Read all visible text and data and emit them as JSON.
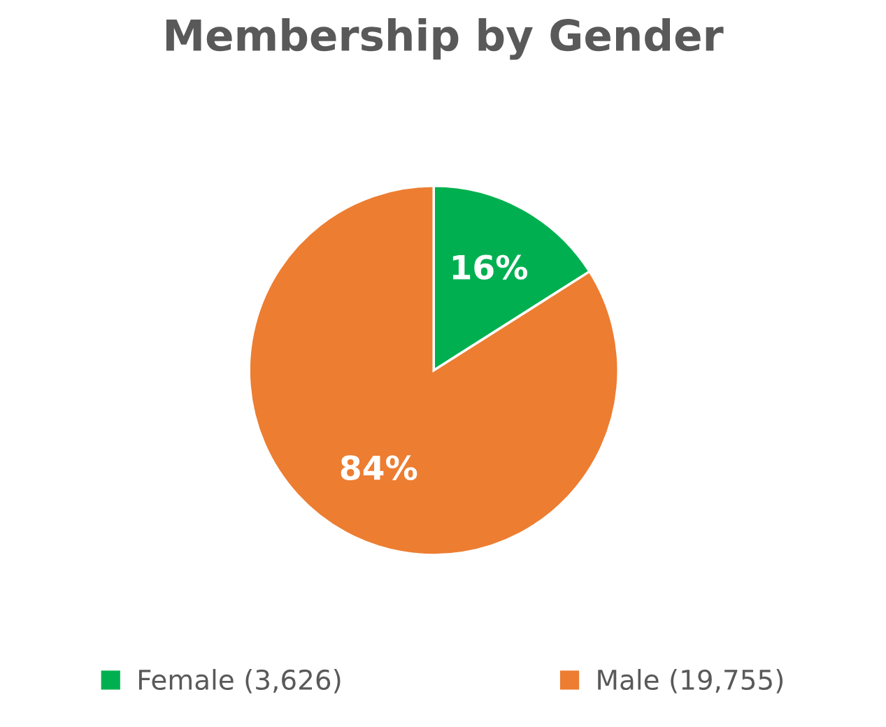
{
  "chart_data": {
    "type": "pie",
    "title": "Membership by Gender",
    "categories": [
      "Female (3,626)",
      "Male (19,755)"
    ],
    "values": [
      16,
      84
    ],
    "colors": [
      "#00b050",
      "#ed7d31"
    ],
    "value_labels": [
      "16%",
      "84%"
    ],
    "legend": "bottom"
  }
}
